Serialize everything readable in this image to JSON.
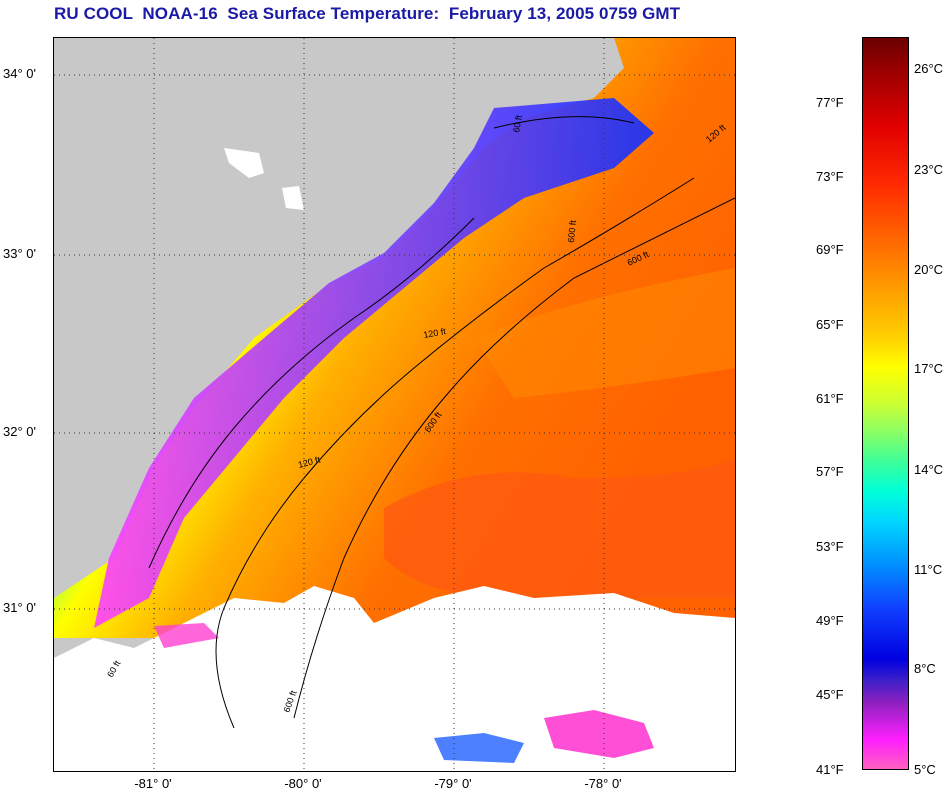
{
  "title": "RU COOL  NOAA-16  Sea Surface Temperature:  February 13, 2005 0759 GMT",
  "latitude_labels": [
    "34° 0'",
    "33° 0'",
    "32° 0'",
    "31° 0'"
  ],
  "longitude_labels": [
    "-81° 0'",
    "-80° 0'",
    "-79° 0'",
    "-78° 0'"
  ],
  "contour_labels": [
    "60 ft",
    "120 ft",
    "600 ft",
    "120 ft",
    "600 ft",
    "120 ft",
    "600 ft",
    "60 ft",
    "600 ft"
  ],
  "colorbar": {
    "fahrenheit": [
      "77°F",
      "73°F",
      "69°F",
      "65°F",
      "61°F",
      "57°F",
      "53°F",
      "49°F",
      "45°F",
      "41°F"
    ],
    "celsius": [
      "26°C",
      "23°C",
      "20°C",
      "17°C",
      "14°C",
      "11°C",
      "8°C",
      "5°C"
    ]
  },
  "colors": {
    "land": "#c8c8c8",
    "cloud": "#ffffff",
    "title": "#1a1aa6"
  }
}
